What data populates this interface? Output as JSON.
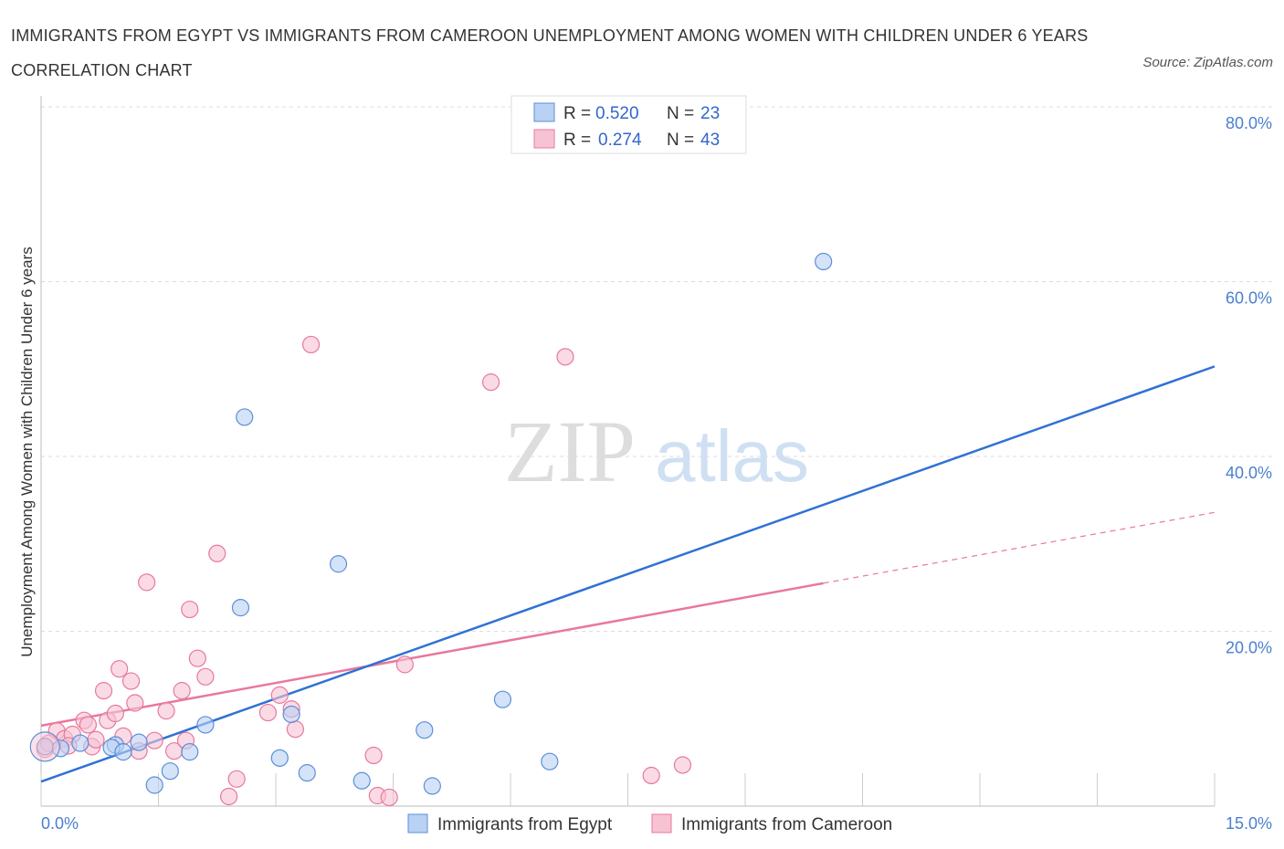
{
  "title": "IMMIGRANTS FROM EGYPT VS IMMIGRANTS FROM CAMEROON UNEMPLOYMENT AMONG WOMEN WITH CHILDREN UNDER 6 YEARS CORRELATION CHART",
  "source": "Source: ZipAtlas.com",
  "watermark": {
    "zip": "ZIP",
    "atlas": "atlas"
  },
  "legend": {
    "rows": [
      {
        "r_label": "R =",
        "r_value": "0.520",
        "n_label": "N =",
        "n_value": "23"
      },
      {
        "r_label": "R =",
        "r_value": "0.274",
        "n_label": "N =",
        "n_value": "43"
      }
    ]
  },
  "bottom_legend": {
    "egypt": "Immigrants from Egypt",
    "cameroon": "Immigrants from Cameroon"
  },
  "chart_data": {
    "type": "scatter",
    "title": "IMMIGRANTS FROM EGYPT VS IMMIGRANTS FROM CAMEROON UNEMPLOYMENT AMONG WOMEN WITH CHILDREN UNDER 6 YEARS CORRELATION CHART",
    "xlabel": "",
    "ylabel": "Unemployment Among Women with Children Under 6 years",
    "xlim": [
      0,
      15
    ],
    "ylim": [
      0,
      80
    ],
    "x_tick_labels": [
      "0.0%",
      "15.0%"
    ],
    "y_ticks": [
      20,
      40,
      60,
      80
    ],
    "y_tick_labels": [
      "20.0%",
      "40.0%",
      "60.0%",
      "80.0%"
    ],
    "grid": "horizontal dashed",
    "legend_placement": "top-center",
    "colors": {
      "egypt": "#5b8fd8",
      "egypt_fill": "#b9d1f3",
      "cameroon": "#e8789c",
      "cameroon_fill": "#f7c3d3"
    },
    "series": [
      {
        "name": "Immigrants from Egypt",
        "points": [
          [
            0.05,
            6.8
          ],
          [
            0.25,
            6.6
          ],
          [
            0.5,
            7.2
          ],
          [
            0.95,
            7.0
          ],
          [
            0.9,
            6.7
          ],
          [
            1.05,
            6.2
          ],
          [
            1.25,
            7.3
          ],
          [
            1.45,
            2.4
          ],
          [
            1.65,
            4.0
          ],
          [
            1.9,
            6.2
          ],
          [
            2.1,
            9.3
          ],
          [
            2.6,
            44.5
          ],
          [
            2.55,
            22.7
          ],
          [
            3.05,
            5.5
          ],
          [
            3.2,
            10.5
          ],
          [
            3.4,
            3.8
          ],
          [
            3.8,
            27.7
          ],
          [
            4.1,
            2.9
          ],
          [
            4.9,
            8.7
          ],
          [
            5.0,
            2.3
          ],
          [
            5.9,
            12.2
          ],
          [
            6.5,
            5.1
          ],
          [
            10.0,
            62.3
          ]
        ],
        "trend": {
          "x": [
            0,
            15
          ],
          "y": [
            2.8,
            50.3
          ]
        }
      },
      {
        "name": "Immigrants from Cameroon",
        "points": [
          [
            0.05,
            6.5
          ],
          [
            0.2,
            8.6
          ],
          [
            0.3,
            7.7
          ],
          [
            0.4,
            8.2
          ],
          [
            0.55,
            9.8
          ],
          [
            0.6,
            9.3
          ],
          [
            0.65,
            6.8
          ],
          [
            0.8,
            13.2
          ],
          [
            0.85,
            9.8
          ],
          [
            0.95,
            10.6
          ],
          [
            1.0,
            15.7
          ],
          [
            1.05,
            8.0
          ],
          [
            1.15,
            14.3
          ],
          [
            1.2,
            11.8
          ],
          [
            1.25,
            6.3
          ],
          [
            1.35,
            25.6
          ],
          [
            1.45,
            7.5
          ],
          [
            1.6,
            10.9
          ],
          [
            1.7,
            6.3
          ],
          [
            1.8,
            13.2
          ],
          [
            1.85,
            7.5
          ],
          [
            1.9,
            22.5
          ],
          [
            2.0,
            16.9
          ],
          [
            2.1,
            14.8
          ],
          [
            2.25,
            28.9
          ],
          [
            2.4,
            1.1
          ],
          [
            2.5,
            3.1
          ],
          [
            2.9,
            10.7
          ],
          [
            3.05,
            12.7
          ],
          [
            3.2,
            11.1
          ],
          [
            3.25,
            8.8
          ],
          [
            3.45,
            52.8
          ],
          [
            4.25,
            5.8
          ],
          [
            4.3,
            1.2
          ],
          [
            4.45,
            1.0
          ],
          [
            4.65,
            16.2
          ],
          [
            5.75,
            48.5
          ],
          [
            6.7,
            51.4
          ],
          [
            7.8,
            3.5
          ],
          [
            8.2,
            4.7
          ],
          [
            0.1,
            7.2
          ],
          [
            0.35,
            6.9
          ],
          [
            0.7,
            7.6
          ]
        ],
        "trend": {
          "x": [
            0,
            10.0
          ],
          "y": [
            9.2,
            25.5
          ]
        },
        "trend_dashed": {
          "x": [
            10.0,
            15
          ],
          "y": [
            25.5,
            33.6
          ]
        }
      }
    ]
  }
}
